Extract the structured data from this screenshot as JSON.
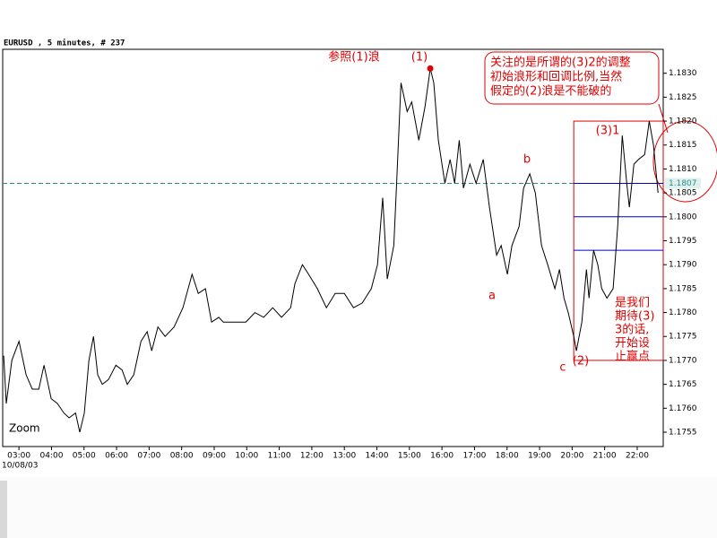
{
  "chart_data": {
    "type": "line",
    "title": "EURUSD , 5 minutes, # 237",
    "date_label": "10/08/03",
    "zoom_label": "Zoom",
    "color": "#000000",
    "x": [
      2.53,
      2.61,
      2.78,
      3.0,
      3.22,
      3.41,
      3.61,
      3.77,
      3.99,
      4.18,
      4.38,
      4.54,
      4.74,
      4.87,
      5.01,
      5.15,
      5.29,
      5.42,
      5.56,
      5.75,
      5.98,
      6.17,
      6.33,
      6.53,
      6.75,
      6.94,
      7.08,
      7.27,
      7.49,
      7.77,
      8.04,
      8.32,
      8.51,
      8.73,
      8.92,
      9.14,
      9.28,
      9.56,
      9.97,
      10.25,
      10.52,
      10.8,
      11.07,
      11.35,
      11.48,
      11.71,
      11.9,
      12.17,
      12.45,
      12.72,
      13.0,
      13.28,
      13.55,
      13.83,
      14.02,
      14.18,
      14.32,
      14.52,
      14.6,
      14.74,
      14.93,
      15.07,
      15.29,
      15.48,
      15.64,
      15.75,
      15.89,
      16.09,
      16.25,
      16.39,
      16.53,
      16.66,
      16.86,
      17.05,
      17.27,
      17.46,
      17.68,
      17.82,
      18.01,
      18.15,
      18.37,
      18.51,
      18.7,
      18.87,
      19.06,
      19.25,
      19.47,
      19.61,
      19.75,
      19.88,
      20.05,
      20.13,
      20.3,
      20.44,
      20.52,
      20.66,
      20.79,
      20.91,
      21.07,
      21.26,
      21.4,
      21.54,
      21.68,
      21.76,
      21.9,
      22.04,
      22.23,
      22.37,
      22.5,
      22.64
    ],
    "values": [
      1.1771,
      1.1761,
      1.177,
      1.1774,
      1.1767,
      1.1764,
      1.1764,
      1.1769,
      1.1762,
      1.1761,
      1.1759,
      1.1758,
      1.1759,
      1.1755,
      1.1759,
      1.177,
      1.1775,
      1.1767,
      1.1765,
      1.1766,
      1.1769,
      1.1768,
      1.1765,
      1.1767,
      1.1774,
      1.1776,
      1.1772,
      1.1777,
      1.1775,
      1.1777,
      1.1781,
      1.1788,
      1.1784,
      1.1785,
      1.1778,
      1.1779,
      1.1778,
      1.1778,
      1.1778,
      1.178,
      1.1779,
      1.1781,
      1.1779,
      1.1781,
      1.1786,
      1.179,
      1.1788,
      1.1785,
      1.1781,
      1.1784,
      1.1784,
      1.1781,
      1.1782,
      1.1785,
      1.179,
      1.1804,
      1.1787,
      1.1794,
      1.1806,
      1.1828,
      1.1822,
      1.1824,
      1.1816,
      1.1823,
      1.1831,
      1.1828,
      1.1816,
      1.1807,
      1.1812,
      1.1807,
      1.1816,
      1.1806,
      1.1811,
      1.1807,
      1.1812,
      1.1802,
      1.1792,
      1.1794,
      1.1788,
      1.1794,
      1.1798,
      1.1806,
      1.1809,
      1.1805,
      1.1794,
      1.179,
      1.1785,
      1.1789,
      1.1783,
      1.178,
      1.1775,
      1.1772,
      1.1778,
      1.1789,
      1.1783,
      1.1793,
      1.179,
      1.1785,
      1.1783,
      1.1785,
      1.1798,
      1.1817,
      1.1807,
      1.1802,
      1.1811,
      1.1812,
      1.1813,
      1.182,
      1.1815,
      1.1805
    ],
    "xlim": [
      2.5,
      22.8
    ],
    "ylim": [
      1.1752,
      1.1835
    ],
    "xticks": [
      {
        "value": 3,
        "label": "03:00"
      },
      {
        "value": 4,
        "label": "04:00"
      },
      {
        "value": 5,
        "label": "05:00"
      },
      {
        "value": 6,
        "label": "06:00"
      },
      {
        "value": 7,
        "label": "07:00"
      },
      {
        "value": 8,
        "label": "08:00"
      },
      {
        "value": 9,
        "label": "09:00"
      },
      {
        "value": 10,
        "label": "10:00"
      },
      {
        "value": 11,
        "label": "11:00"
      },
      {
        "value": 12,
        "label": "12:00"
      },
      {
        "value": 13,
        "label": "13:00"
      },
      {
        "value": 14,
        "label": "14:00"
      },
      {
        "value": 15,
        "label": "15:00"
      },
      {
        "value": 16,
        "label": "16:00"
      },
      {
        "value": 17,
        "label": "17:00"
      },
      {
        "value": 18,
        "label": "18:00"
      },
      {
        "value": 19,
        "label": "19:00"
      },
      {
        "value": 20,
        "label": "20:00"
      },
      {
        "value": 21,
        "label": "21:00"
      },
      {
        "value": 22,
        "label": "22:00"
      }
    ],
    "yticks": [
      1.1755,
      {
        "value": 1.176,
        "label": "1.1760"
      },
      1.1765,
      {
        "value": 1.177,
        "label": "1.1770"
      },
      1.1775,
      {
        "value": 1.178,
        "label": "1.1780"
      },
      1.1785,
      {
        "value": 1.179,
        "label": "1.1790"
      },
      1.1795,
      {
        "value": 1.18,
        "label": "1.1800"
      },
      1.1805,
      {
        "value": 1.181,
        "label": "1.1810"
      },
      1.1815,
      {
        "value": 1.182,
        "label": "1.1820"
      },
      1.1825,
      {
        "value": 1.183,
        "label": "1.1830"
      }
    ],
    "current_price": 1.1807,
    "levels": [
      1.1807,
      1.18,
      1.1793
    ],
    "box": {
      "x": [
        20.05,
        22.8
      ],
      "y": [
        1.177,
        1.182
      ]
    },
    "peak": {
      "x": 15.64,
      "y": 1.1831
    },
    "annotations": [
      "参照(1)浪",
      "(1)",
      "b",
      "a",
      "c",
      "(2)",
      "(3)1"
    ],
    "callout": [
      "关注的是所谓的(3)2的调整",
      "初始浪形和回调比例,当然",
      "假定的(2)浪是不能破的"
    ],
    "note": [
      "是我们",
      "期待(3)",
      "3的话,",
      "开始设",
      "止赢点"
    ]
  }
}
